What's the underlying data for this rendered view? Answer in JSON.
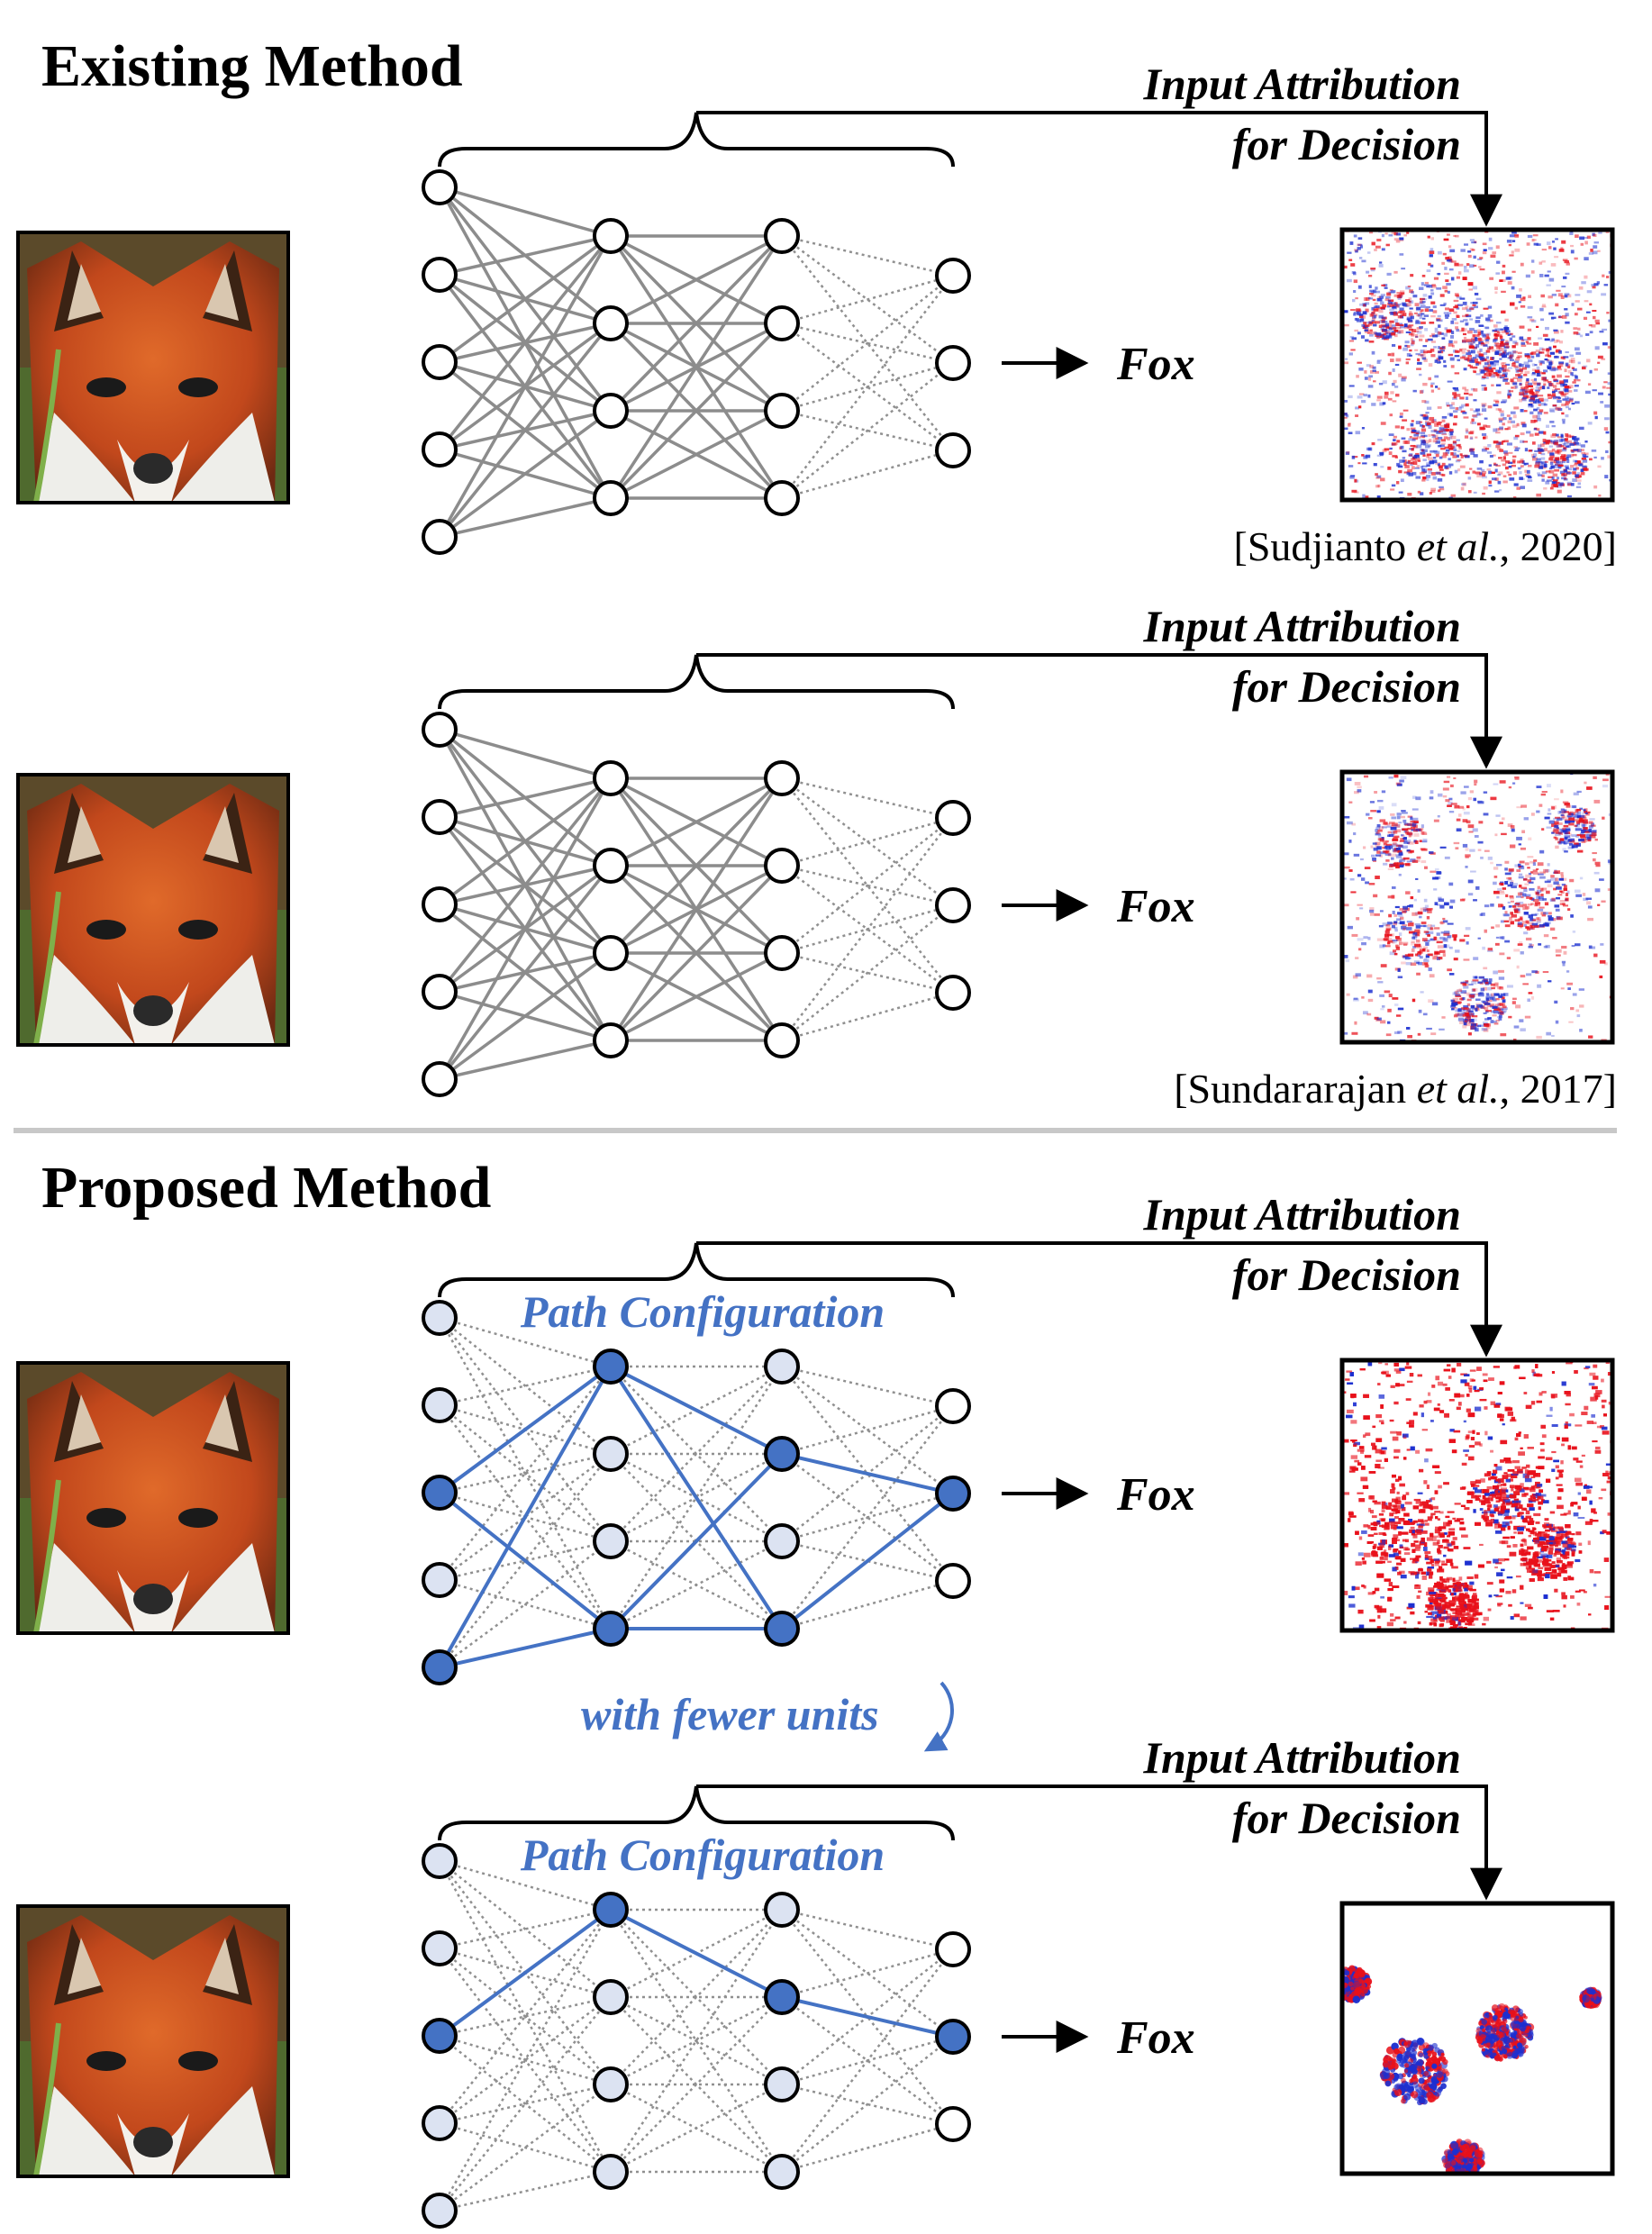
{
  "colors": {
    "accent": "#4472c4",
    "active_node": "#4472c4",
    "inactive_node": "#dce3f2",
    "edge_gray": "#8c8c8c",
    "edge_dotted": "#909090",
    "attr_red": "#e8101a",
    "attr_blue": "#1c2fd0",
    "divider": "#c8c8c8"
  },
  "sections": [
    {
      "title": "Existing Method"
    },
    {
      "title": "Proposed Method"
    }
  ],
  "panels": [
    {
      "input_image": "fox-photo",
      "attribution_label": [
        "Input Attribution",
        "for Decision"
      ],
      "output_label": "Fox",
      "citation_prefix": "[Sudjianto ",
      "citation_italic": "et al.",
      "citation_suffix": ", 2020]",
      "path_label": "",
      "style": "standard",
      "active": [],
      "attr_style": "noisy"
    },
    {
      "input_image": "fox-photo",
      "attribution_label": [
        "Input Attribution",
        "for Decision"
      ],
      "output_label": "Fox",
      "citation_prefix": "[Sundararajan ",
      "citation_italic": "et al.",
      "citation_suffix": ", 2017]",
      "path_label": "",
      "style": "standard",
      "active": [],
      "attr_style": "gradient"
    },
    {
      "input_image": "fox-photo",
      "attribution_label": [
        "Input Attribution",
        "for Decision"
      ],
      "output_label": "Fox",
      "path_label": "Path Configuration",
      "style": "path",
      "active": [
        [
          2,
          4
        ],
        [
          0,
          3
        ],
        [
          1,
          3
        ],
        [
          1
        ]
      ],
      "attr_style": "dense"
    },
    {
      "input_image": "fox-photo",
      "attribution_label": [
        "Input Attribution",
        "for Decision"
      ],
      "output_label": "Fox",
      "path_label": "Path Configuration",
      "style": "path",
      "active": [
        [
          2
        ],
        [
          0
        ],
        [
          1
        ],
        [
          1
        ]
      ],
      "attr_style": "sparse"
    }
  ],
  "between_label": "with fewer units"
}
